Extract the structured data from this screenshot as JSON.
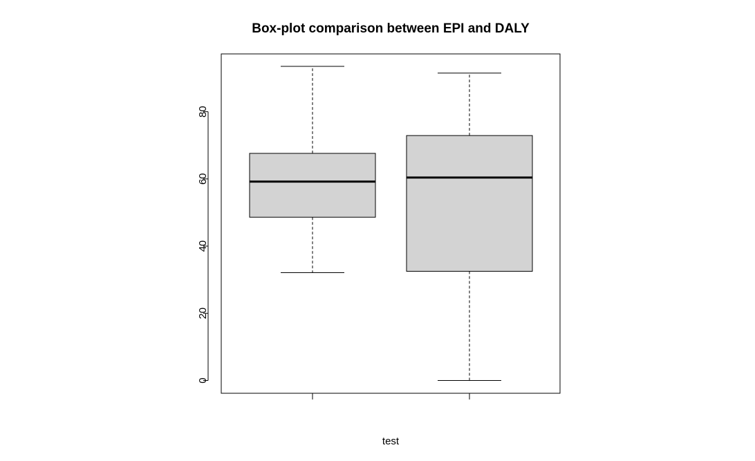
{
  "chart_data": {
    "type": "boxplot",
    "title": "Box-plot comparison between EPI and DALY",
    "xlabel": "test",
    "ylabel": "",
    "ylim": [
      -3.8,
      97.2
    ],
    "y_ticks": [
      0,
      20,
      40,
      60,
      80
    ],
    "grid": false,
    "legend": "none",
    "box_fill": "#d3d3d3",
    "series": [
      {
        "min": 32.1,
        "q1": 48.6,
        "median": 59.2,
        "q3": 67.6,
        "max": 93.5
      },
      {
        "min": 0.0,
        "q1": 32.5,
        "median": 60.4,
        "q3": 72.9,
        "max": 91.5
      }
    ]
  }
}
